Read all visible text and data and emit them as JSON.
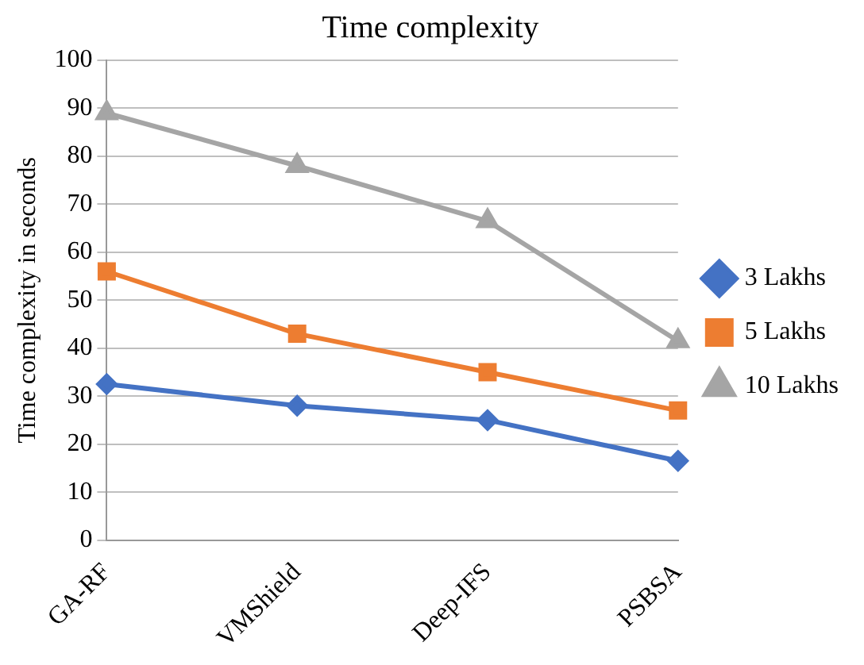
{
  "chart_data": {
    "type": "line",
    "title": "Time complexity",
    "ylabel": "Time complexity in seconds",
    "categories": [
      "GA-RF",
      "VMShield",
      "Deep-IFS",
      "PSBSA"
    ],
    "series": [
      {
        "name": "3 Lakhs",
        "color": "#4472c4",
        "marker": "diamond",
        "values": [
          32.5,
          28,
          25,
          16.5
        ]
      },
      {
        "name": "5 Lakhs",
        "color": "#ed7d31",
        "marker": "square",
        "values": [
          56,
          43,
          35,
          27
        ]
      },
      {
        "name": "10 Lakhs",
        "color": "#a5a5a5",
        "marker": "triangle",
        "values": [
          89,
          78,
          66.5,
          41.5
        ]
      }
    ],
    "ylim": [
      0,
      100
    ],
    "yticks": [
      0,
      10,
      20,
      30,
      40,
      50,
      60,
      70,
      80,
      90,
      100
    ],
    "grid": "y",
    "legend": "right"
  }
}
